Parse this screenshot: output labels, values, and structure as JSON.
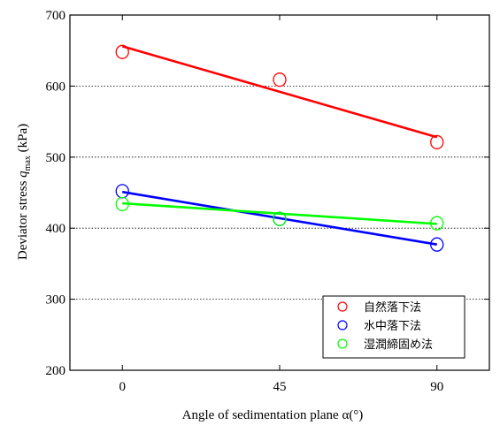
{
  "chart_data": {
    "type": "scatter",
    "title": "",
    "xlabel": "Angle of sedimentation plane α(°)",
    "ylabel_parts": {
      "pre": "Deviator stress ",
      "var": "q",
      "sub": "max",
      "post": " (kPa)"
    },
    "xlim": [
      -15,
      105
    ],
    "ylim": [
      200,
      700
    ],
    "xticks": [
      "0",
      "45",
      "90"
    ],
    "xtick_values": [
      0,
      45,
      90
    ],
    "yticks": [
      "200",
      "300",
      "400",
      "500",
      "600",
      "700"
    ],
    "ytick_values": [
      200,
      300,
      400,
      500,
      600,
      700
    ],
    "grid": "horizontal-dotted",
    "legend_position": "bottom-right",
    "series": [
      {
        "name": "自然落下法",
        "color": "#ff0000",
        "x": [
          0,
          45,
          90
        ],
        "y": [
          648,
          609,
          521
        ],
        "fit": [
          656,
          528
        ]
      },
      {
        "name": "水中落下法",
        "color": "#0000ff",
        "x": [
          0,
          45,
          90
        ],
        "y": [
          452,
          413,
          377
        ],
        "fit": [
          451,
          377
        ]
      },
      {
        "name": "湿潤締固め法",
        "color": "#00ff00",
        "x": [
          0,
          45,
          90
        ],
        "y": [
          434,
          413,
          407
        ],
        "fit": [
          435,
          406
        ]
      }
    ]
  }
}
